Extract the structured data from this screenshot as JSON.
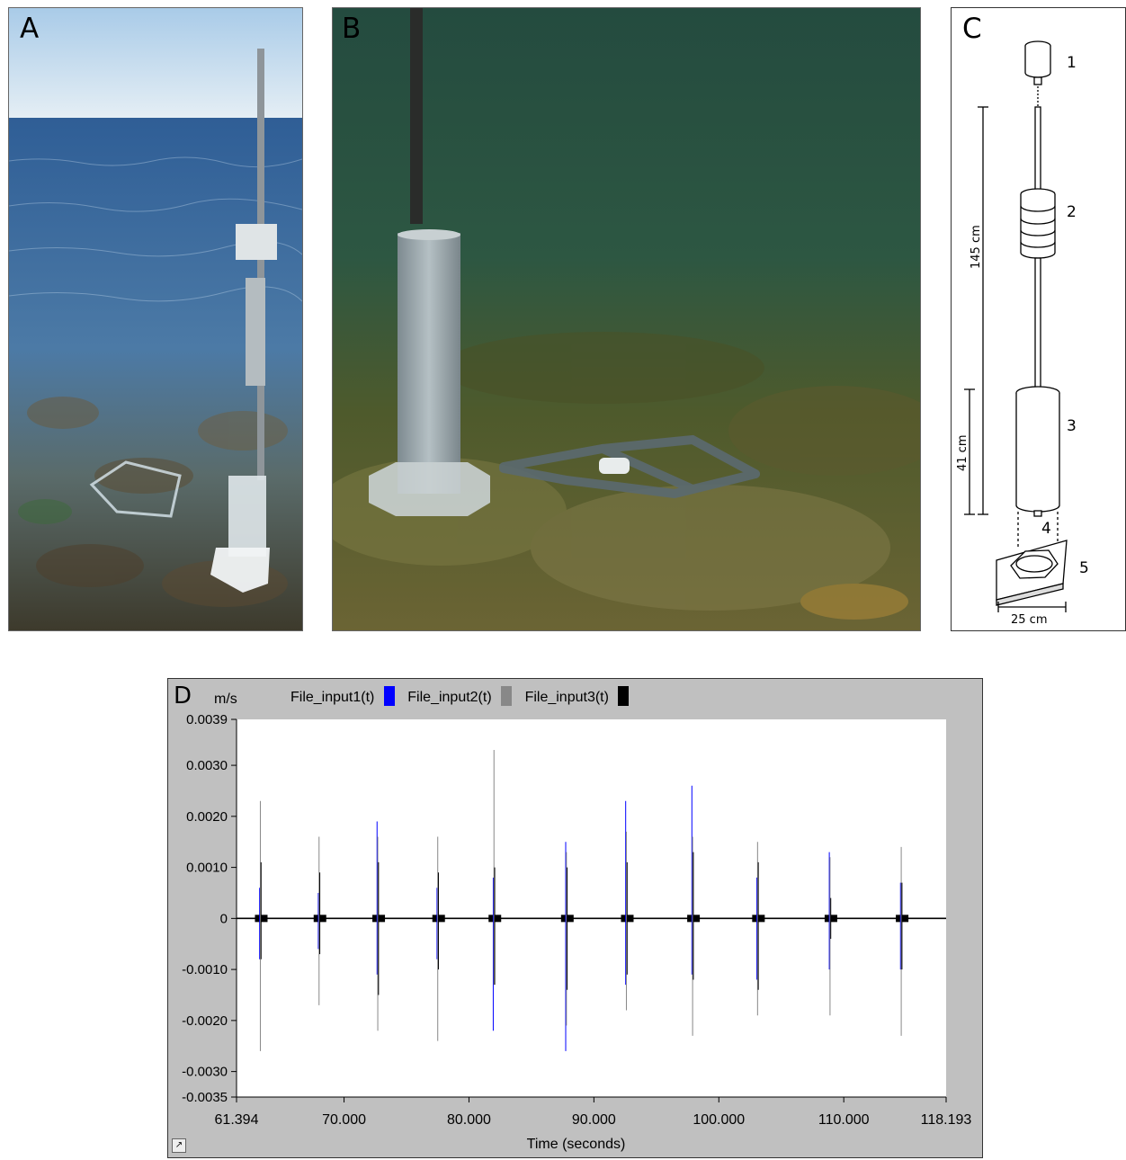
{
  "panels": {
    "a": {
      "letter": "A"
    },
    "b": {
      "letter": "B"
    },
    "c": {
      "letter": "C",
      "parts": [
        "1",
        "2",
        "3",
        "4",
        "5"
      ],
      "dimensions": {
        "height_total": "145 cm",
        "height_cylinder": "41 cm",
        "base_width": "25 cm"
      }
    },
    "d": {
      "letter": "D"
    }
  },
  "chart_data": {
    "type": "line",
    "ylabel": "m/s",
    "xlabel": "Time (seconds)",
    "xlim": [
      61.394,
      118.193
    ],
    "ylim": [
      -0.0035,
      0.0039
    ],
    "x_tick_labels": [
      "61.394",
      "70.000",
      "80.000",
      "90.000",
      "100.000",
      "110.000",
      "118.193"
    ],
    "x_ticks": [
      61.394,
      70.0,
      80.0,
      90.0,
      100.0,
      110.0,
      118.193
    ],
    "y_tick_labels": [
      "0.0039",
      "0.0030",
      "0.0020",
      "0.0010",
      "0",
      "-0.0010",
      "-0.0020",
      "-0.0030",
      "-0.0035"
    ],
    "y_ticks": [
      0.0039,
      0.003,
      0.002,
      0.001,
      0,
      -0.001,
      -0.002,
      -0.003,
      -0.0035
    ],
    "legend": [
      {
        "name": "File_input1(t)",
        "color": "#0000ff"
      },
      {
        "name": "File_input2(t)",
        "color": "#888888"
      },
      {
        "name": "File_input3(t)",
        "color": "#000000"
      }
    ],
    "background": "#c0c0c0",
    "plot_background": "#ffffff",
    "events": [
      {
        "t": 63.3,
        "input1": [
          0.0006,
          -0.0008
        ],
        "input2": [
          0.0023,
          -0.0026
        ],
        "input3": [
          0.0011,
          -0.0008
        ]
      },
      {
        "t": 68.0,
        "input1": [
          0.0005,
          -0.0006
        ],
        "input2": [
          0.0016,
          -0.0017
        ],
        "input3": [
          0.0009,
          -0.0007
        ]
      },
      {
        "t": 72.7,
        "input1": [
          0.0019,
          -0.0011
        ],
        "input2": [
          0.0016,
          -0.0022
        ],
        "input3": [
          0.0011,
          -0.0015
        ]
      },
      {
        "t": 77.5,
        "input1": [
          0.0006,
          -0.0008
        ],
        "input2": [
          0.0016,
          -0.0024
        ],
        "input3": [
          0.0009,
          -0.001
        ]
      },
      {
        "t": 82.0,
        "input1": [
          0.0008,
          -0.0022
        ],
        "input2": [
          0.0033,
          -0.0013
        ],
        "input3": [
          0.001,
          -0.0013
        ]
      },
      {
        "t": 87.8,
        "input1": [
          0.0015,
          -0.0026
        ],
        "input2": [
          0.0013,
          -0.0021
        ],
        "input3": [
          0.001,
          -0.0014
        ]
      },
      {
        "t": 92.6,
        "input1": [
          0.0023,
          -0.0013
        ],
        "input2": [
          0.0017,
          -0.0018
        ],
        "input3": [
          0.0011,
          -0.0011
        ]
      },
      {
        "t": 97.9,
        "input1": [
          0.0026,
          -0.0011
        ],
        "input2": [
          0.0016,
          -0.0023
        ],
        "input3": [
          0.0013,
          -0.0012
        ]
      },
      {
        "t": 103.1,
        "input1": [
          0.0008,
          -0.0012
        ],
        "input2": [
          0.0015,
          -0.0019
        ],
        "input3": [
          0.0011,
          -0.0014
        ]
      },
      {
        "t": 108.9,
        "input1": [
          0.0013,
          -0.001
        ],
        "input2": [
          0.0012,
          -0.0019
        ],
        "input3": [
          0.0004,
          -0.0004
        ]
      },
      {
        "t": 114.6,
        "input1": [
          0.0007,
          -0.001
        ],
        "input2": [
          0.0014,
          -0.0023
        ],
        "input3": [
          0.0007,
          -0.001
        ]
      }
    ]
  },
  "colors": {
    "sea_surface": "#3f6fa3",
    "sky": "#cfe3f2",
    "underwater": "#1e4a3a",
    "seabed": "#6b6a32",
    "pvc": "#9aa7ad"
  }
}
